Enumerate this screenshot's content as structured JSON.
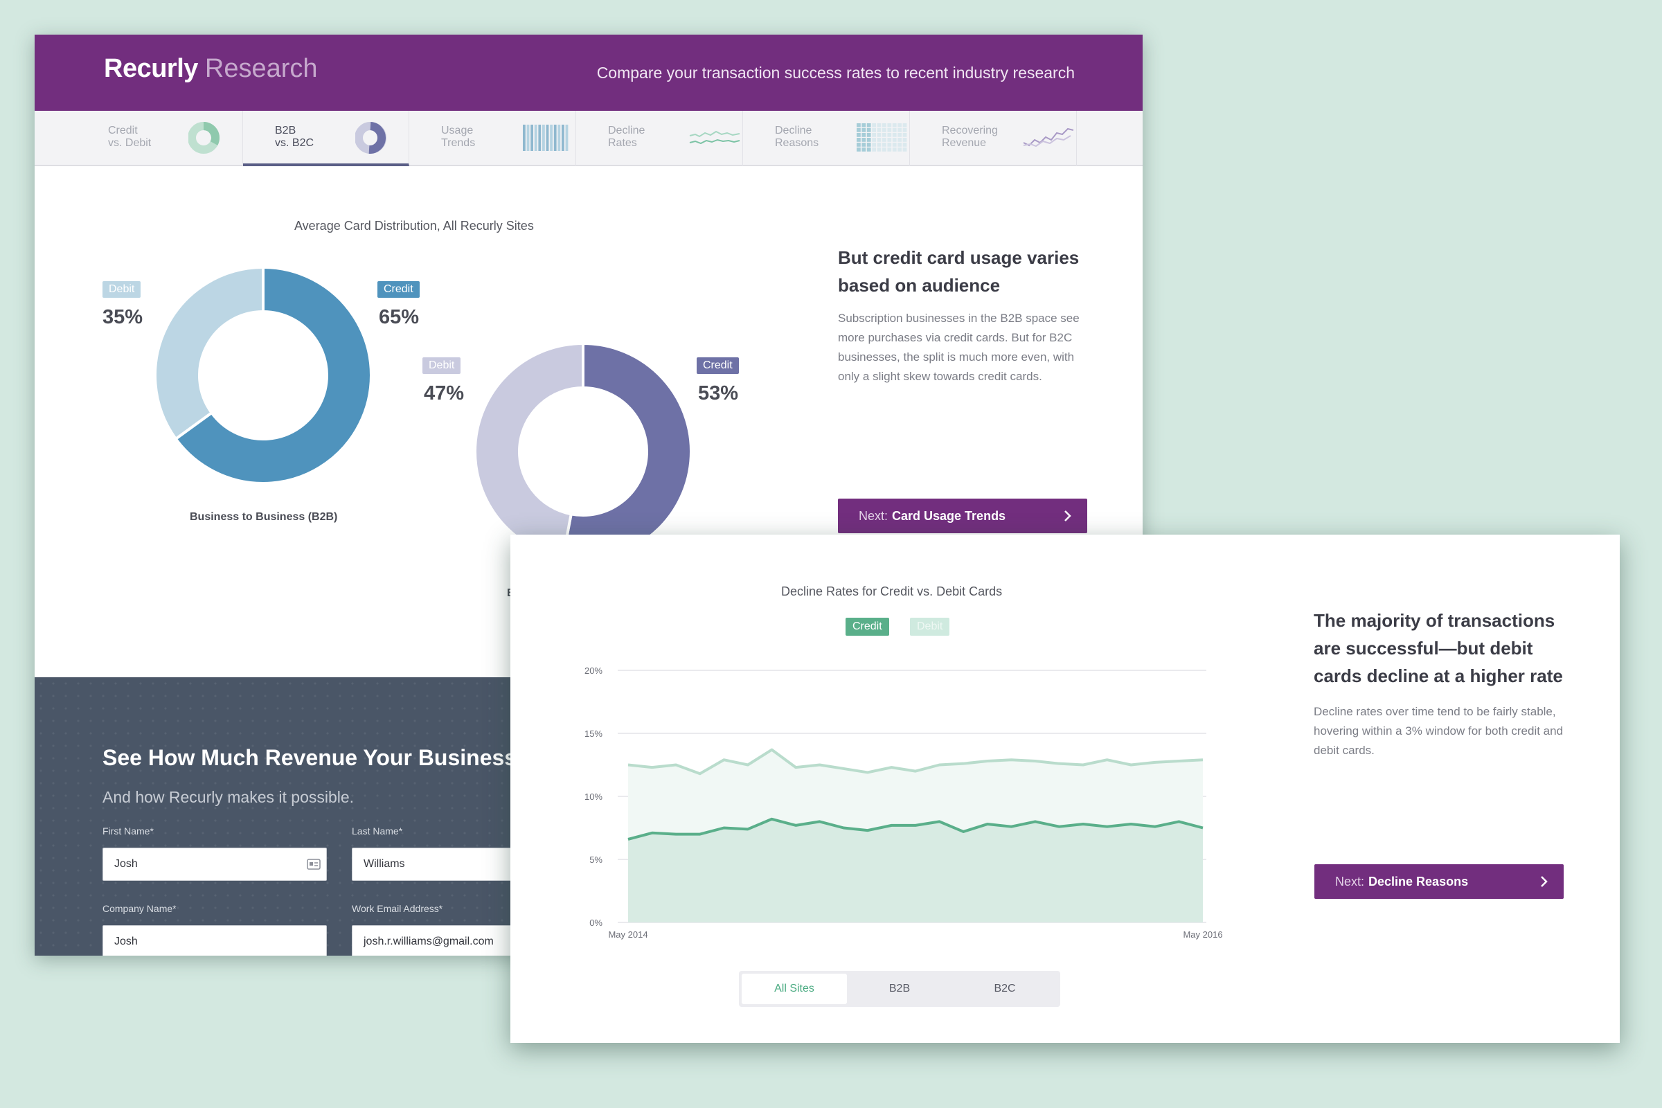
{
  "header": {
    "logo_primary": "Recurly",
    "logo_secondary": "Research",
    "tagline": "Compare your transaction success rates to recent industry research"
  },
  "tabs": [
    {
      "line1": "Credit",
      "line2": "vs. Debit",
      "icon": "donut-thumb-icon",
      "active": false
    },
    {
      "line1": "B2B",
      "line2": "vs. B2C",
      "icon": "donut-thumb-icon",
      "active": true
    },
    {
      "line1": "Usage",
      "line2": "Trends",
      "icon": "bars-thumb-icon",
      "active": false
    },
    {
      "line1": "Decline",
      "line2": "Rates",
      "icon": "line-thumb-icon",
      "active": false
    },
    {
      "line1": "Decline",
      "line2": "Reasons",
      "icon": "grid-thumb-icon",
      "active": false
    },
    {
      "line1": "Recovering",
      "line2": "Revenue",
      "icon": "trend-thumb-icon",
      "active": false
    }
  ],
  "b2b_section": {
    "title": "Average Card Distribution, All Recurly Sites",
    "b2b": {
      "debit_label": "Debit",
      "debit_pct": "35%",
      "credit_label": "Credit",
      "credit_pct": "65%",
      "caption": "Business to Business (B2B)"
    },
    "b2c": {
      "debit_label": "Debit",
      "debit_pct": "47%",
      "credit_label": "Credit",
      "credit_pct": "53%",
      "caption_partial": "B"
    },
    "side_title": "But credit card usage varies based on audience",
    "side_body": "Subscription businesses in the B2B space see more purchases via credit cards. But for B2C businesses, the split is much more even, with only a slight skew towards credit cards.",
    "next_prefix": "Next:",
    "next_label": "Card Usage Trends"
  },
  "lead_form": {
    "heading": "See How Much Revenue Your Business",
    "subheading": "And how Recurly makes it possible.",
    "fields": {
      "first_name": {
        "label": "First Name*",
        "value": "Josh"
      },
      "last_name": {
        "label": "Last Name*",
        "value": "Williams"
      },
      "company": {
        "label": "Company Name*",
        "value": "Josh"
      },
      "email": {
        "label": "Work Email Address*",
        "value": "josh.r.williams@gmail.com"
      }
    }
  },
  "decline_section": {
    "title": "Decline Rates for Credit vs. Debit Cards",
    "legend": {
      "credit": "Credit",
      "debit": "Debit"
    },
    "side_title": "The majority of transactions are successful—but debit cards decline at a higher rate",
    "side_body": "Decline rates over time tend to be fairly stable, hovering within a 3% window for both credit and debit cards.",
    "next_prefix": "Next:",
    "next_label": "Decline Reasons",
    "filters": [
      "All Sites",
      "B2B",
      "B2C"
    ],
    "active_filter": "All Sites"
  },
  "colors": {
    "brand_purple": "#722e7e",
    "b2b_credit": "#4f93bd",
    "b2b_debit": "#bcd6e4",
    "b2c_credit": "#6e71a6",
    "b2c_debit": "#c9cadf",
    "decline_credit": "#5aaf8a",
    "decline_debit": "#b9dccc"
  },
  "chart_data": [
    {
      "type": "pie",
      "title": "Average Card Distribution, All Recurly Sites",
      "subtitle": "Business to Business (B2B)",
      "categories": [
        "Debit",
        "Credit"
      ],
      "values": [
        35,
        65
      ]
    },
    {
      "type": "pie",
      "categories": [
        "Debit",
        "Credit"
      ],
      "values": [
        47,
        53
      ]
    },
    {
      "type": "area",
      "title": "Decline Rates for Credit vs. Debit Cards",
      "x_tick_labels": [
        "May 2014",
        "May 2016"
      ],
      "y_tick_labels": [
        "0%",
        "5%",
        "10%",
        "15%",
        "20%"
      ],
      "ylim": [
        0,
        20
      ],
      "legend": "top-center",
      "grid": true,
      "series": [
        {
          "name": "Debit",
          "values": [
            12.5,
            12.3,
            12.5,
            11.8,
            12.9,
            12.5,
            13.7,
            12.3,
            12.5,
            12.2,
            11.9,
            12.3,
            12.0,
            12.5,
            12.6,
            12.8,
            12.9,
            12.8,
            12.6,
            12.5,
            12.9,
            12.5,
            12.7,
            12.8,
            12.9
          ]
        },
        {
          "name": "Credit",
          "values": [
            6.6,
            7.1,
            7.0,
            7.0,
            7.5,
            7.4,
            8.2,
            7.7,
            8.0,
            7.5,
            7.3,
            7.7,
            7.7,
            8.0,
            7.2,
            7.8,
            7.6,
            8.0,
            7.6,
            7.8,
            7.6,
            7.8,
            7.6,
            8.0,
            7.5
          ]
        }
      ]
    }
  ]
}
